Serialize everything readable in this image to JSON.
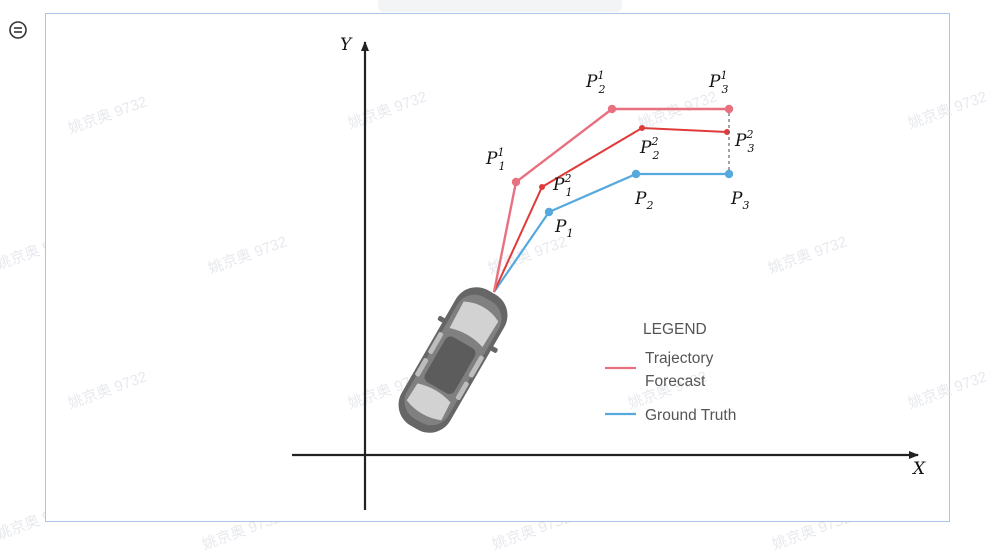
{
  "axes": {
    "x_label": "X",
    "y_label": "Y"
  },
  "points": {
    "forecast1": {
      "p1": "P",
      "p1_sub": "1",
      "p1_sup": "1",
      "p2": "P",
      "p2_sub": "2",
      "p2_sup": "1",
      "p3": "P",
      "p3_sub": "3",
      "p3_sup": "1"
    },
    "forecast2": {
      "p1": "P",
      "p1_sub": "1",
      "p1_sup": "2",
      "p2": "P",
      "p2_sub": "2",
      "p2_sup": "2",
      "p3": "P",
      "p3_sub": "3",
      "p3_sup": "2"
    },
    "truth": {
      "p1": "P",
      "p1_sub": "1",
      "p2": "P",
      "p2_sub": "2",
      "p3": "P",
      "p3_sub": "3"
    }
  },
  "legend": {
    "title": "LEGEND",
    "forecast_label_line1": "Trajectory",
    "forecast_label_line2": "Forecast",
    "truth_label": "Ground Truth"
  },
  "watermark": "姚京奥 9732",
  "colors": {
    "forecast1": "#e8707f",
    "forecast2": "#e03a3a",
    "truth": "#55a9dd",
    "axis": "#222222",
    "frame": "#aac4ea"
  }
}
